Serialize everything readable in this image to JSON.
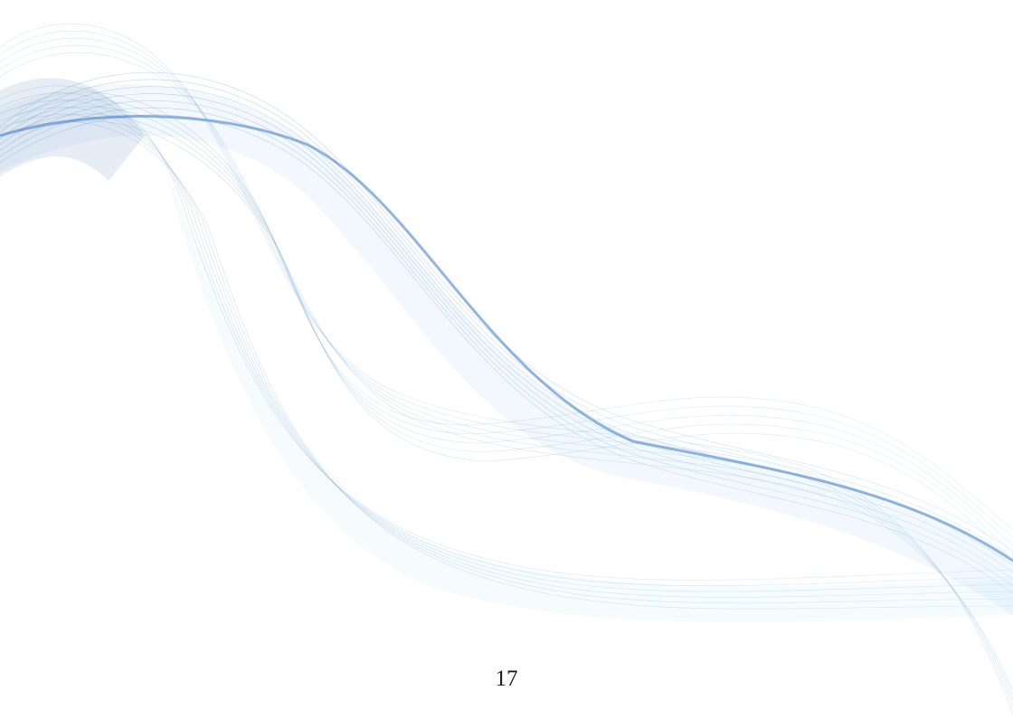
{
  "page": {
    "number": "17"
  },
  "decoration": {
    "name": "abstract-blue-wave-ribbons",
    "colors": {
      "dark_blue": "#3d6fa3",
      "mid_blue": "#4a8fd8",
      "light_blue": "#7cc4ee",
      "cyan": "#5fd0f5"
    }
  }
}
